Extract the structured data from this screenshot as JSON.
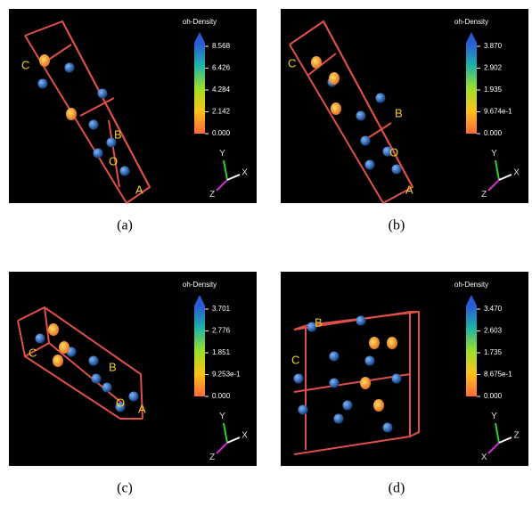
{
  "panels": [
    {
      "caption": "(a)",
      "legend_title": "oh-Density",
      "ticks": [
        "8.568",
        "6.426",
        "4.284",
        "2.142",
        "0.000"
      ],
      "lattice": [
        "C",
        "B",
        "O",
        "A"
      ],
      "axes": [
        "Y",
        "X",
        "Z"
      ]
    },
    {
      "caption": "(b)",
      "legend_title": "oh-Density",
      "ticks": [
        "3.870",
        "2.902",
        "1.935",
        "9.674e-1",
        "0.000"
      ],
      "lattice": [
        "C",
        "B",
        "O",
        "A"
      ],
      "axes": [
        "Y",
        "X",
        "Z"
      ]
    },
    {
      "caption": "(c)",
      "legend_title": "oh-Density",
      "ticks": [
        "3.701",
        "2.776",
        "1.851",
        "9.253e-1",
        "0.000"
      ],
      "lattice": [
        "C",
        "B",
        "O",
        "A"
      ],
      "axes": [
        "Y",
        "X",
        "Z"
      ]
    },
    {
      "caption": "(d)",
      "legend_title": "oh-Density",
      "ticks": [
        "3.470",
        "2.603",
        "1.735",
        "8.675e-1",
        "0.000"
      ],
      "lattice": [
        "B",
        "C"
      ],
      "axes": [
        "Y",
        "Z",
        "X"
      ]
    }
  ]
}
